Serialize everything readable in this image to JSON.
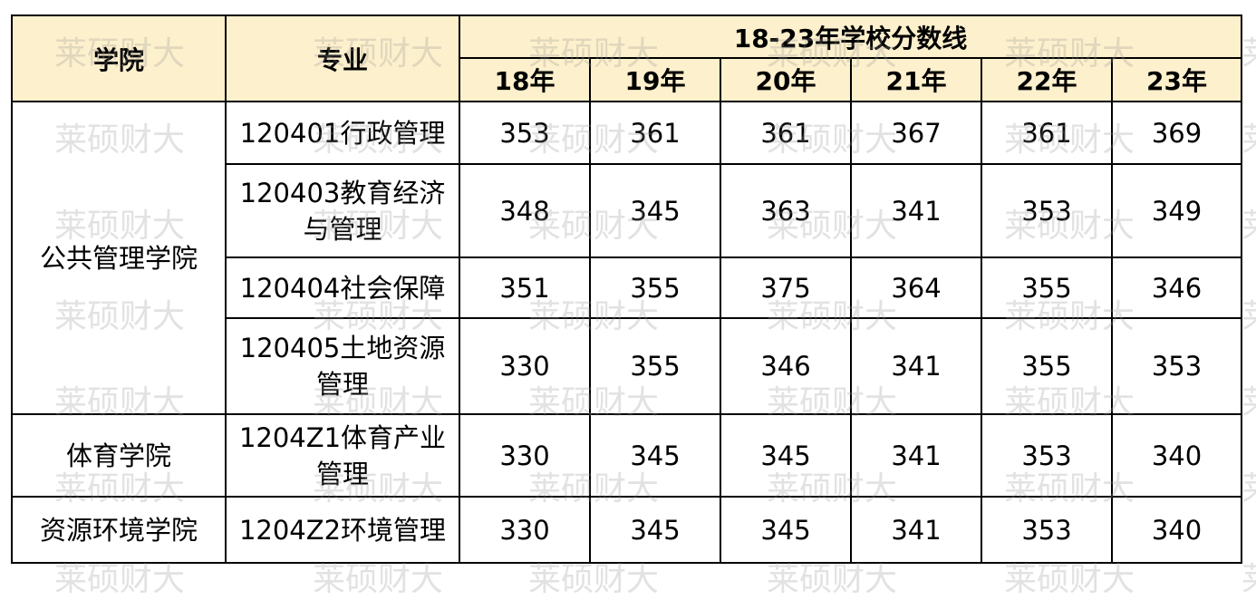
{
  "watermark": "莱硕财大",
  "colors": {
    "header_bg": "#FDF0CC",
    "border": "#000000"
  },
  "header": {
    "college": "学院",
    "major": "专业",
    "group": "18-23年学校分数线",
    "years": [
      "18年",
      "19年",
      "20年",
      "21年",
      "22年",
      "23年"
    ]
  },
  "groups": [
    {
      "college": "公共管理学院",
      "rows": [
        {
          "major": "120401行政管理",
          "scores": [
            "353",
            "361",
            "361",
            "367",
            "361",
            "369"
          ]
        },
        {
          "major": "120403教育经济与管理",
          "scores": [
            "348",
            "345",
            "363",
            "341",
            "353",
            "349"
          ]
        },
        {
          "major": "120404社会保障",
          "scores": [
            "351",
            "355",
            "375",
            "364",
            "355",
            "346"
          ]
        },
        {
          "major": "120405土地资源管理",
          "scores": [
            "330",
            "355",
            "346",
            "341",
            "355",
            "353"
          ]
        }
      ]
    },
    {
      "college": "体育学院",
      "rows": [
        {
          "major": "1204Z1体育产业管理",
          "scores": [
            "330",
            "345",
            "345",
            "341",
            "353",
            "340"
          ]
        }
      ]
    },
    {
      "college": "资源环境学院",
      "rows": [
        {
          "major": "1204Z2环境管理",
          "scores": [
            "330",
            "345",
            "345",
            "341",
            "353",
            "340"
          ]
        }
      ]
    }
  ]
}
